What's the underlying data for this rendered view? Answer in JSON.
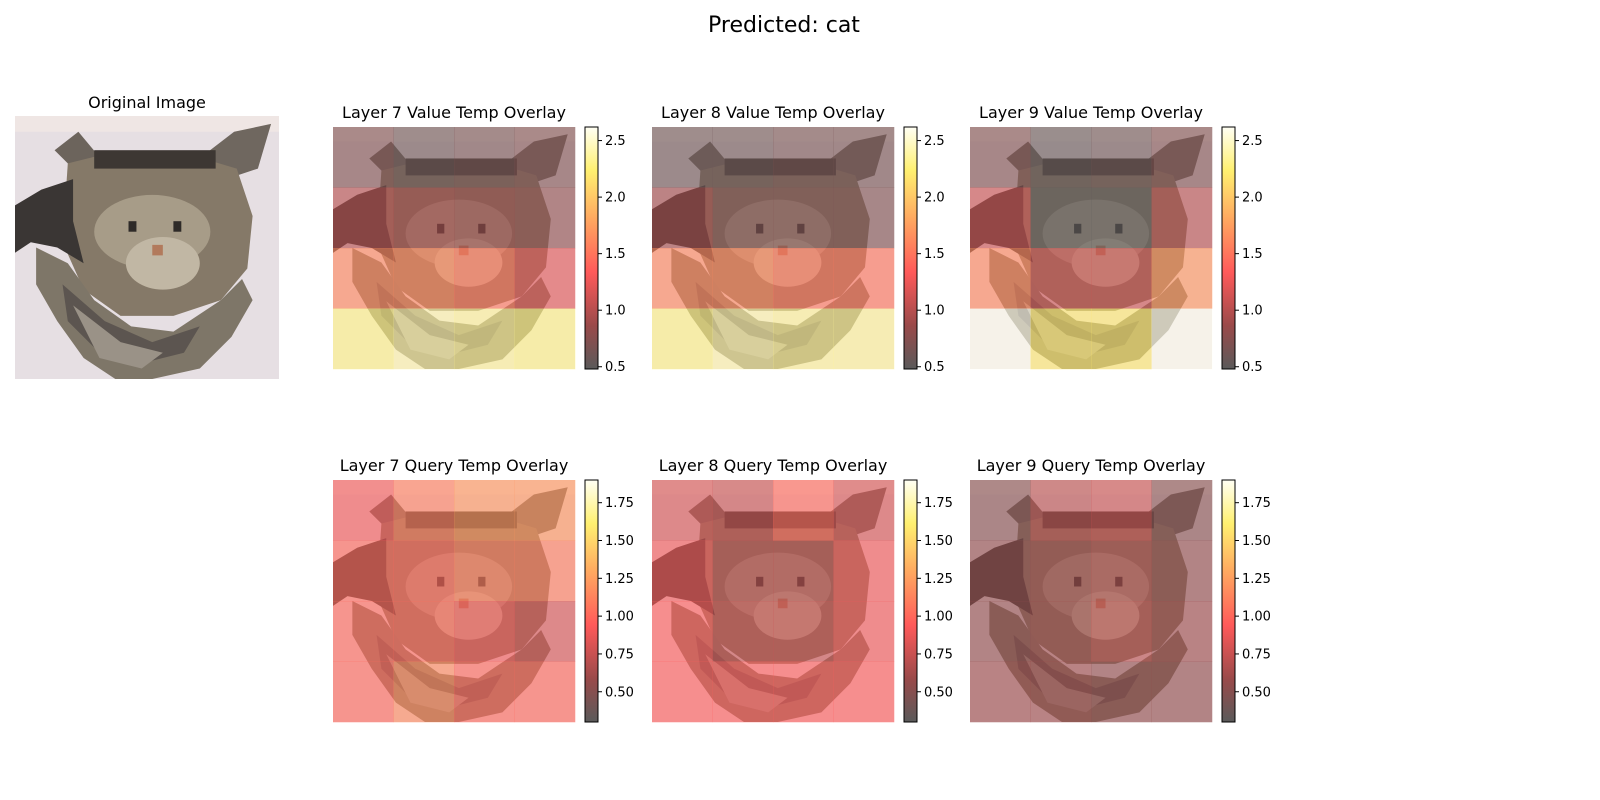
{
  "figure": {
    "suptitle": "Predicted: cat",
    "original_title": "Original Image"
  },
  "colors": {
    "colormap": [
      "#000000",
      "#b40000",
      "#ff3a00",
      "#ffb000",
      "#ffff40",
      "#ffffff"
    ],
    "cat_fur": "#8a7d6e",
    "background": "#e8e0e4"
  },
  "chart_data": [
    {
      "type": "heatmap",
      "title": "Layer 7 Value Temp Overlay",
      "grid": [
        [
          0.7,
          0.6,
          0.65,
          0.7
        ],
        [
          1.0,
          0.9,
          0.85,
          0.8
        ],
        [
          1.6,
          1.6,
          1.5,
          1.2
        ],
        [
          2.3,
          2.4,
          2.35,
          2.3
        ]
      ],
      "colorbar": {
        "ticks": [
          "0.5",
          "1.0",
          "1.5",
          "2.0",
          "2.5"
        ],
        "tick_values": [
          0.5,
          1.0,
          1.5,
          2.0,
          2.5
        ],
        "range": [
          0.48,
          2.62
        ]
      }
    },
    {
      "type": "heatmap",
      "title": "Layer 8 Value Temp Overlay",
      "grid": [
        [
          0.6,
          0.6,
          0.65,
          0.65
        ],
        [
          0.9,
          0.7,
          0.7,
          0.7
        ],
        [
          1.6,
          1.6,
          1.5,
          1.5
        ],
        [
          2.3,
          2.4,
          2.35,
          2.35
        ]
      ],
      "colorbar": {
        "ticks": [
          "0.5",
          "1.0",
          "1.5",
          "2.0",
          "2.5"
        ],
        "tick_values": [
          0.5,
          1.0,
          1.5,
          2.0,
          2.5
        ],
        "range": [
          0.48,
          2.62
        ]
      }
    },
    {
      "type": "heatmap",
      "title": "Layer 9 Value Temp Overlay",
      "grid": [
        [
          0.7,
          0.55,
          0.6,
          0.7
        ],
        [
          1.1,
          0.5,
          0.5,
          1.0
        ],
        [
          1.6,
          1.1,
          1.1,
          1.7
        ],
        [
          2.6,
          2.2,
          2.2,
          2.6
        ]
      ],
      "colorbar": {
        "ticks": [
          "0.5",
          "1.0",
          "1.5",
          "2.0",
          "2.5"
        ],
        "tick_values": [
          0.5,
          1.0,
          1.5,
          2.0,
          2.5
        ],
        "range": [
          0.48,
          2.62
        ]
      }
    },
    {
      "type": "heatmap",
      "title": "Layer 7 Query Temp Overlay",
      "grid": [
        [
          0.9,
          1.1,
          1.2,
          1.2
        ],
        [
          1.0,
          1.0,
          1.1,
          1.1
        ],
        [
          1.0,
          1.0,
          0.9,
          0.8
        ],
        [
          1.0,
          1.15,
          1.0,
          1.0
        ]
      ],
      "colorbar": {
        "ticks": [
          "0.50",
          "0.75",
          "1.00",
          "1.25",
          "1.50",
          "1.75"
        ],
        "tick_values": [
          0.5,
          0.75,
          1.0,
          1.25,
          1.5,
          1.75
        ],
        "range": [
          0.3,
          1.9
        ]
      }
    },
    {
      "type": "heatmap",
      "title": "Layer 8 Query Temp Overlay",
      "grid": [
        [
          0.8,
          0.75,
          1.0,
          0.8
        ],
        [
          0.9,
          0.7,
          0.7,
          0.9
        ],
        [
          0.95,
          0.75,
          0.75,
          0.9
        ],
        [
          0.95,
          0.95,
          0.95,
          0.95
        ]
      ],
      "colorbar": {
        "ticks": [
          "0.50",
          "0.75",
          "1.00",
          "1.25",
          "1.50",
          "1.75"
        ],
        "tick_values": [
          0.5,
          0.75,
          1.0,
          1.25,
          1.5,
          1.75
        ],
        "range": [
          0.3,
          1.9
        ]
      }
    },
    {
      "type": "heatmap",
      "title": "Layer 9 Query Temp Overlay",
      "grid": [
        [
          0.5,
          0.7,
          0.75,
          0.5
        ],
        [
          0.55,
          0.6,
          0.65,
          0.55
        ],
        [
          0.55,
          0.6,
          0.7,
          0.6
        ],
        [
          0.6,
          0.6,
          0.55,
          0.55
        ]
      ],
      "colorbar": {
        "ticks": [
          "0.50",
          "0.75",
          "1.00",
          "1.25",
          "1.50",
          "1.75"
        ],
        "tick_values": [
          0.5,
          0.75,
          1.0,
          1.25,
          1.5,
          1.75
        ],
        "range": [
          0.3,
          1.9
        ]
      }
    }
  ]
}
